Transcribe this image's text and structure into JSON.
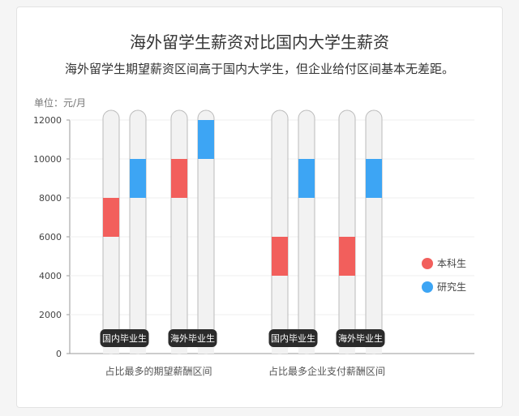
{
  "chart_data": {
    "type": "bar",
    "title": "海外留学生薪资对比国内大学生薪资",
    "subtitle": "海外留学生期望薪资区间高于国内大学生，但企业给付区间基本无差距。",
    "unit": "单位：元/月",
    "ylim": [
      0,
      12000
    ],
    "yticks": [
      0,
      2000,
      4000,
      6000,
      8000,
      10000,
      12000
    ],
    "legend": [
      {
        "name": "本科生",
        "color": "#f25f5c"
      },
      {
        "name": "研究生",
        "color": "#3da5f4"
      }
    ],
    "groups": [
      {
        "label": "占比最多的期望薪酬区间",
        "pairs": [
          {
            "label": "国内毕业生",
            "undergrad": [
              6000,
              8000
            ],
            "graduate": [
              8000,
              10000
            ]
          },
          {
            "label": "海外毕业生",
            "undergrad": [
              8000,
              10000
            ],
            "graduate": [
              10000,
              12000
            ]
          }
        ]
      },
      {
        "label": "占比最多企业支付薪酬区间",
        "pairs": [
          {
            "label": "国内毕业生",
            "undergrad": [
              4000,
              6000
            ],
            "graduate": [
              8000,
              10000
            ]
          },
          {
            "label": "海外毕业生",
            "undergrad": [
              4000,
              6000
            ],
            "graduate": [
              8000,
              10000
            ]
          }
        ]
      }
    ]
  }
}
